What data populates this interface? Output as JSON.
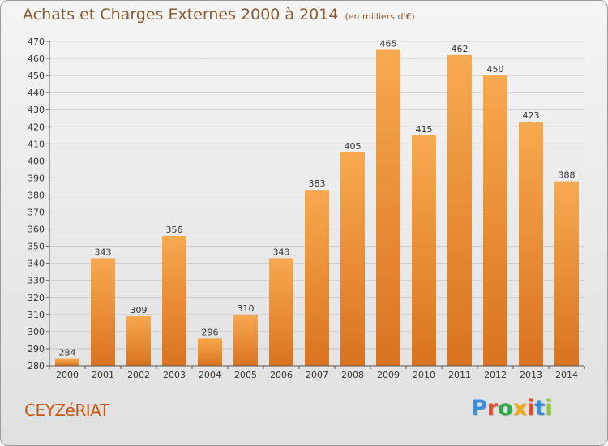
{
  "title": "Achats et Charges Externes 2000 à 2014",
  "subtitle": "(en milliers d'€)",
  "commune": "CEYZéRIAT",
  "logo": {
    "text": "Proxiti",
    "colors": [
      "#3a8fd6",
      "#e84a2e",
      "#2fa84a",
      "#f2a81d",
      "#e84a2e",
      "#3a8fd6",
      "#8cc63f"
    ]
  },
  "colors": {
    "bar_light": "#f7a94f",
    "bar_dark": "#d9731f",
    "title": "#8a5a2f",
    "commune": "#c8580f"
  },
  "chart_data": {
    "type": "bar",
    "categories": [
      "2000",
      "2001",
      "2002",
      "2003",
      "2004",
      "2005",
      "2006",
      "2007",
      "2008",
      "2009",
      "2010",
      "2011",
      "2012",
      "2013",
      "2014"
    ],
    "values": [
      284,
      343,
      309,
      356,
      296,
      310,
      343,
      383,
      405,
      465,
      415,
      462,
      450,
      423,
      388
    ],
    "xlabel": "",
    "ylabel": "",
    "ylim": [
      280,
      470
    ],
    "yticks": [
      280,
      290,
      300,
      310,
      320,
      330,
      340,
      350,
      360,
      370,
      380,
      390,
      400,
      410,
      420,
      430,
      440,
      450,
      460,
      470
    ],
    "grid": true
  }
}
